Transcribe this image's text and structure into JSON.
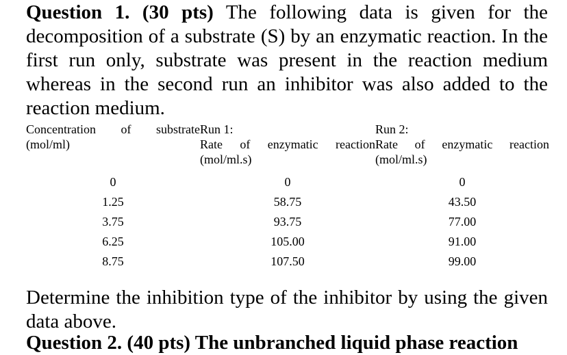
{
  "question1": {
    "heading": "Question 1. (30 pts)",
    "intro": "The following data is given for the decomposition of a substrate (S) by an enzymatic reaction. In the first run only, substrate was present in the reaction medium whereas in the second run an inhibitor was also added to the reaction medium.",
    "table": {
      "col1_header_line1": "Concentration of substrate",
      "col1_header_line2": "(mol/ml)",
      "col2_header_line1": "Run 1:",
      "col2_header_line2": "Rate of enzymatic reaction",
      "col2_header_line3": "(mol/ml.s)",
      "col3_header_line1": "Run 2:",
      "col3_header_line2": "Rate of enzymatic reaction",
      "col3_header_line3": "(mol/ml.s)",
      "rows": [
        {
          "substrate": "0",
          "run1": "0",
          "run2": "0"
        },
        {
          "substrate": "1.25",
          "run1": "58.75",
          "run2": "43.50"
        },
        {
          "substrate": "3.75",
          "run1": "93.75",
          "run2": "77.00"
        },
        {
          "substrate": "6.25",
          "run1": "105.00",
          "run2": "91.00"
        },
        {
          "substrate": "8.75",
          "run1": "107.50",
          "run2": "99.00"
        }
      ]
    },
    "task": "Determine the inhibition type of the inhibitor by using the given data above."
  },
  "question2_cut": "Question 2. (40 pts) The unbranched liquid phase reaction"
}
